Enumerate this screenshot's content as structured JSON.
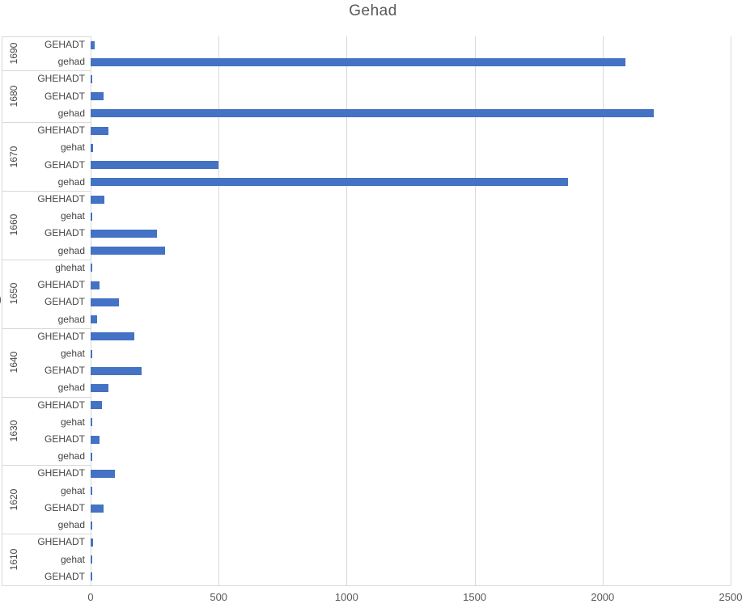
{
  "title": "Gehad",
  "colors": {
    "bar": "#4472C4",
    "gridline": "#D9D9D9",
    "tick_text": "#595959",
    "category_text": "#444444",
    "title_text": "#595959"
  },
  "chart_data": {
    "type": "bar",
    "orientation": "horizontal",
    "title": "Gehad",
    "xlabel": "",
    "ylabel": "",
    "xlim": [
      0,
      2500
    ],
    "x_ticks": [
      0,
      500,
      1000,
      1500,
      2000,
      2500
    ],
    "grid": "vertical",
    "legend": "none",
    "partial_left_glyph": ")",
    "groups": [
      {
        "decade": "1690",
        "items": [
          {
            "label": "GEHADT",
            "value": 15
          },
          {
            "label": "gehad",
            "value": 2090
          }
        ]
      },
      {
        "decade": "1680",
        "items": [
          {
            "label": "GHEHADT",
            "value": 5
          },
          {
            "label": "GEHADT",
            "value": 50
          },
          {
            "label": "gehad",
            "value": 2200
          }
        ]
      },
      {
        "decade": "1670",
        "items": [
          {
            "label": "GHEHADT",
            "value": 70
          },
          {
            "label": "gehat",
            "value": 8
          },
          {
            "label": "GEHADT",
            "value": 500
          },
          {
            "label": "gehad",
            "value": 1865
          }
        ]
      },
      {
        "decade": "1660",
        "items": [
          {
            "label": "GHEHADT",
            "value": 55
          },
          {
            "label": "gehat",
            "value": 5
          },
          {
            "label": "GEHADT",
            "value": 260
          },
          {
            "label": "gehad",
            "value": 290
          }
        ]
      },
      {
        "decade": "1650",
        "items": [
          {
            "label": "ghehat",
            "value": 5
          },
          {
            "label": "GHEHADT",
            "value": 35
          },
          {
            "label": "GEHADT",
            "value": 110
          },
          {
            "label": "gehad",
            "value": 25
          }
        ]
      },
      {
        "decade": "1640",
        "items": [
          {
            "label": "GHEHADT",
            "value": 170
          },
          {
            "label": "gehat",
            "value": 6
          },
          {
            "label": "GEHADT",
            "value": 200
          },
          {
            "label": "gehad",
            "value": 70
          }
        ]
      },
      {
        "decade": "1630",
        "items": [
          {
            "label": "GHEHADT",
            "value": 45
          },
          {
            "label": "gehat",
            "value": 4
          },
          {
            "label": "GEHADT",
            "value": 35
          },
          {
            "label": "gehad",
            "value": 4
          }
        ]
      },
      {
        "decade": "1620",
        "items": [
          {
            "label": "GHEHADT",
            "value": 95
          },
          {
            "label": "gehat",
            "value": 5
          },
          {
            "label": "GEHADT",
            "value": 50
          },
          {
            "label": "gehad",
            "value": 4
          }
        ]
      },
      {
        "decade": "1610",
        "items": [
          {
            "label": "GHEHADT",
            "value": 8
          },
          {
            "label": "gehat",
            "value": 5
          },
          {
            "label": "GEHADT",
            "value": 5
          }
        ]
      }
    ]
  }
}
